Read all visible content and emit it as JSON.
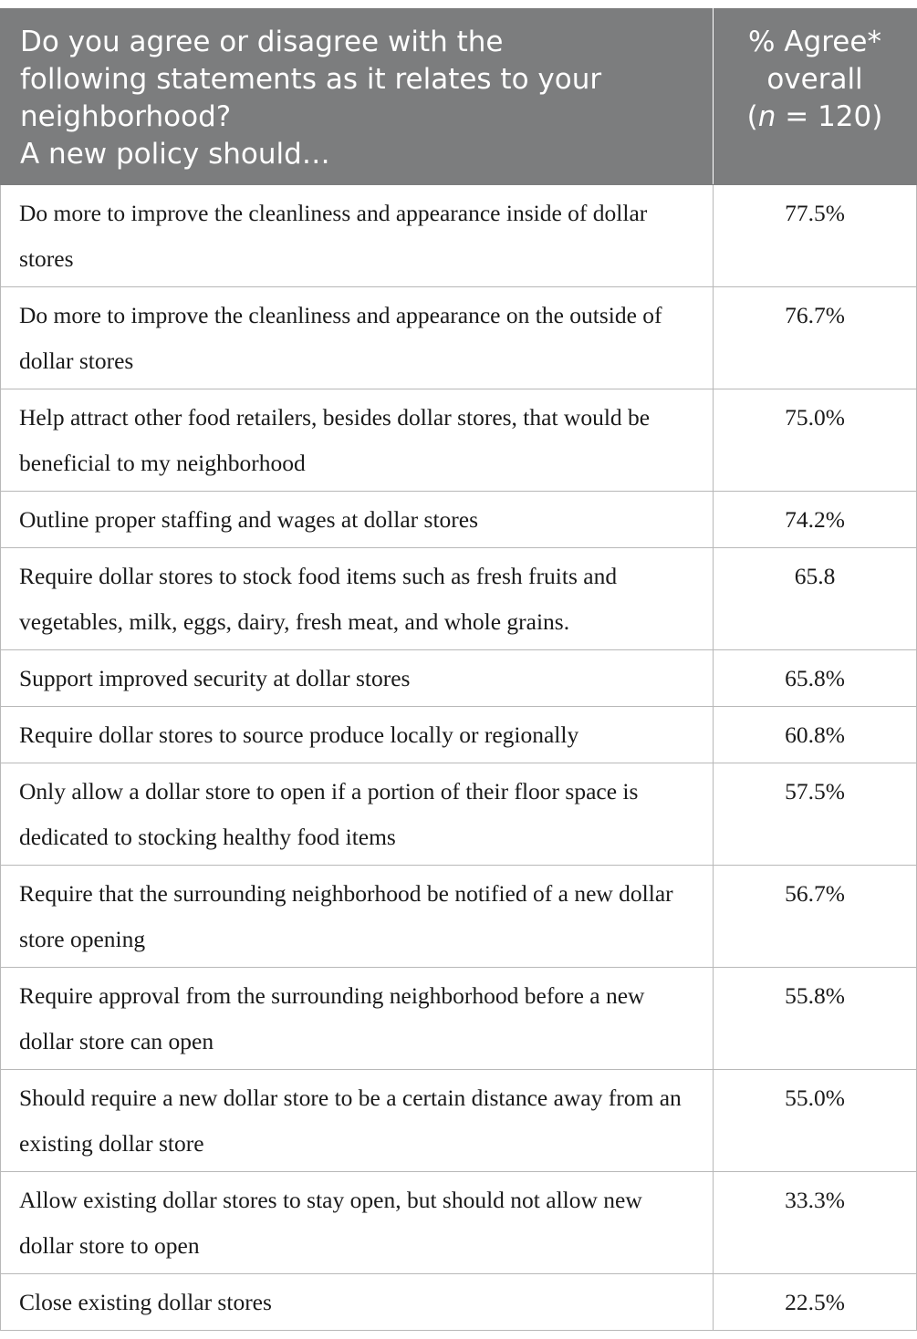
{
  "header": {
    "question_lines": [
      "Do you agree or disagree with the",
      "following statements as it relates to your",
      "neighborhood?",
      "A new policy should…"
    ],
    "col2_lines": [
      "% Agree*",
      "overall"
    ],
    "n_prefix": "(",
    "n_label": "n",
    "n_suffix": " = 120)"
  },
  "rows": [
    {
      "statement": "Do more to improve the cleanliness and appearance inside of dollar stores",
      "agree": "77.5%"
    },
    {
      "statement": "Do more to improve the cleanliness and appearance on the outside of dollar stores",
      "agree": "76.7%"
    },
    {
      "statement": "Help attract other food retailers, besides dollar stores, that would be beneficial to my neighborhood",
      "agree": "75.0%"
    },
    {
      "statement": "Outline proper staffing and wages at dollar stores",
      "agree": "74.2%"
    },
    {
      "statement": "Require dollar stores to stock food items such as fresh fruits and vegetables, milk, eggs, dairy, fresh meat, and whole grains.",
      "agree": "65.8"
    },
    {
      "statement": "Support improved security at dollar stores",
      "agree": "65.8%"
    },
    {
      "statement": "Require dollar stores to source produce locally or regionally",
      "agree": "60.8%"
    },
    {
      "statement": "Only allow a dollar store to open if a portion of their floor space is dedicated to stocking healthy food items",
      "agree": "57.5%"
    },
    {
      "statement": "Require that the surrounding neighborhood be notified of a new dollar store opening",
      "agree": "56.7%"
    },
    {
      "statement": "Require approval from the surrounding neighborhood before a new dollar store can open",
      "agree": "55.8%"
    },
    {
      "statement": "Should require a new dollar store to be a certain distance away from an existing dollar store",
      "agree": "55.0%"
    },
    {
      "statement": "Allow existing dollar stores to stay open, but should not allow new dollar store to open",
      "agree": "33.3%"
    },
    {
      "statement": "Close existing dollar stores",
      "agree": "22.5%"
    }
  ]
}
